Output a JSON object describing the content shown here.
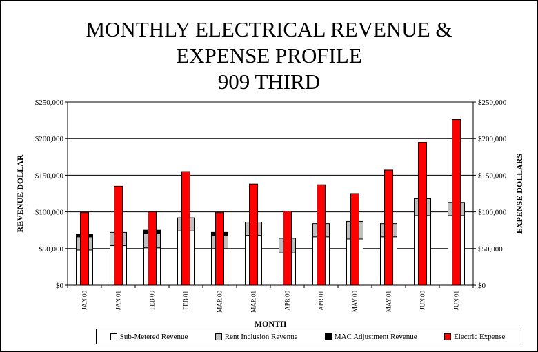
{
  "title_lines": [
    "MONTHLY ELECTRICAL REVENUE &",
    "EXPENSE PROFILE",
    "909 THIRD"
  ],
  "colors": {
    "sub_metered": "#ffffff",
    "rent_inclusion": "#c0c0c0",
    "mac_adjustment": "#000000",
    "electric_expense": "#ff0000"
  },
  "chart_data": {
    "type": "bar",
    "title": "MONTHLY ELECTRICAL REVENUE & EXPENSE PROFILE 909 THIRD",
    "xlabel": "MONTH",
    "ylabel": "REVENUE DOLLAR",
    "ylabel_right": "EXPENSE DOLLARS",
    "ylim": [
      0,
      250000
    ],
    "yticks": [
      "$0",
      "$50,000",
      "$100,000",
      "$150,000",
      "$200,000",
      "$250,000"
    ],
    "ytick_values": [
      0,
      50000,
      100000,
      150000,
      200000,
      250000
    ],
    "categories": [
      "JAN 00",
      "JAN 01",
      "FEB 00",
      "FEB 01",
      "MAR 00",
      "MAR 01",
      "APR 00",
      "APR 01",
      "MAY 00",
      "MAY 01",
      "JUN 00",
      "JUN 01"
    ],
    "grid": "horizontal",
    "legend_position": "bottom",
    "stacked_series": [
      {
        "name": "Sub-Metered Revenue",
        "values": [
          48000,
          54000,
          51000,
          74000,
          50000,
          68000,
          44000,
          66000,
          63000,
          66000,
          95000,
          95000
        ]
      },
      {
        "name": "Rent Inclusion Revenue",
        "values": [
          18000,
          18000,
          20000,
          18000,
          18000,
          18000,
          20000,
          18000,
          24000,
          18000,
          23000,
          18000
        ]
      },
      {
        "name": "MAC Adjustment Revenue",
        "values": [
          4000,
          0,
          4000,
          0,
          4000,
          0,
          0,
          0,
          0,
          0,
          0,
          0
        ]
      }
    ],
    "series": [
      {
        "name": "Electric Expense",
        "values": [
          99000,
          135000,
          100000,
          155000,
          99000,
          138000,
          101000,
          137000,
          125000,
          157000,
          195000,
          226000
        ]
      }
    ]
  }
}
